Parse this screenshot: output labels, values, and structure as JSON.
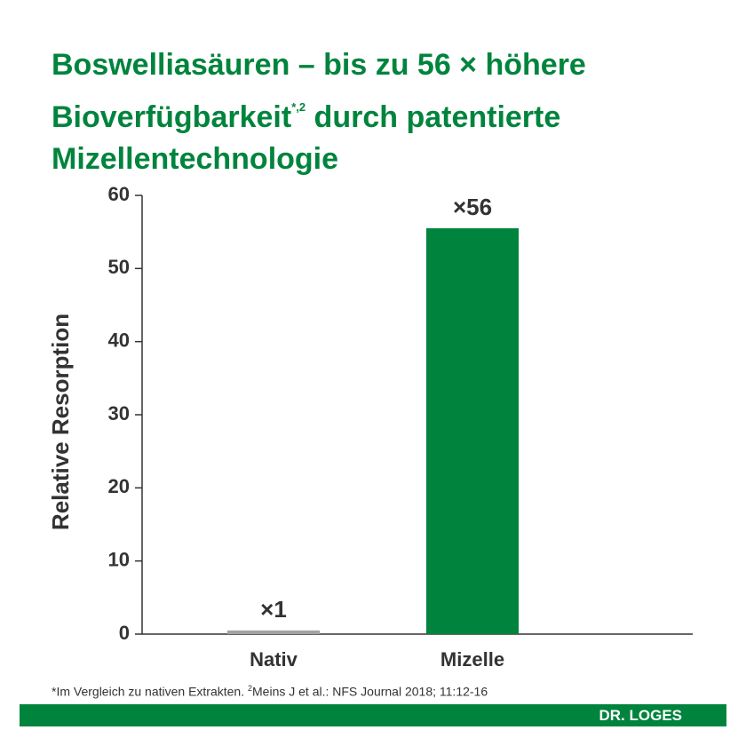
{
  "chart_data": {
    "type": "bar",
    "title": "Boswelliasäuren – bis zu 56 × höhere Bioverfügbarkeit",
    "title_superscript": "*,2",
    "title_continued": "durch patentierte Mizellentechnologie",
    "ylabel": "Relative Resorption",
    "categories": [
      "Nativ",
      "Mizelle"
    ],
    "values": [
      0.5,
      55.5
    ],
    "colors": [
      "#a3a3a3",
      "#00843d"
    ],
    "annotations": [
      "×1",
      "×56"
    ],
    "ylim": [
      0,
      60
    ],
    "yticks": [
      0,
      10,
      20,
      30,
      40,
      50,
      60
    ],
    "footnote": "*Im Vergleich zu nativen Extrakten.",
    "footnote_superscript": "2",
    "footnote_continued": "Meins J et al.: NFS Journal 2018; 11:12-16",
    "brand": "DR. LOGES"
  }
}
